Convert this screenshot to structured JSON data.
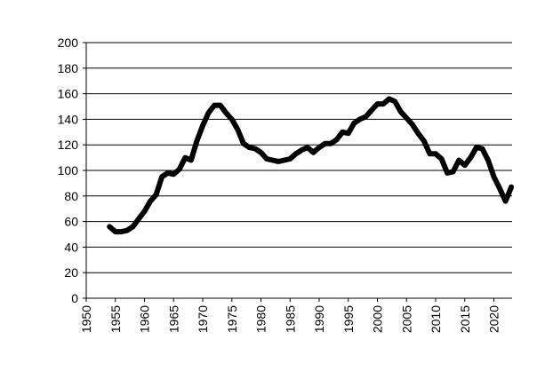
{
  "chart_data": {
    "type": "line",
    "title": "",
    "xlabel": "",
    "ylabel": "",
    "xlim": [
      1950,
      2023
    ],
    "ylim": [
      0,
      200
    ],
    "y_ticks": [
      "0",
      "20",
      "40",
      "60",
      "80",
      "100",
      "120",
      "140",
      "160",
      "180",
      "200"
    ],
    "x_ticks": [
      "1950",
      "1955",
      "1960",
      "1965",
      "1970",
      "1975",
      "1980",
      "1985",
      "1990",
      "1995",
      "2000",
      "2005",
      "2010",
      "2015",
      "2020"
    ],
    "grid": "horizontal",
    "legend": "none",
    "colors": {
      "line": "#000000",
      "grid": "#000000",
      "background": "#ffffff"
    },
    "series": [
      {
        "x": [
          1954,
          1955,
          1956,
          1957,
          1958,
          1959,
          1960,
          1961,
          1962,
          1963,
          1964,
          1965,
          1966,
          1967,
          1968,
          1969,
          1970,
          1971,
          1972,
          1973,
          1974,
          1975,
          1976,
          1977,
          1978,
          1979,
          1980,
          1981,
          1982,
          1983,
          1984,
          1985,
          1986,
          1987,
          1988,
          1989,
          1990,
          1991,
          1992,
          1993,
          1994,
          1995,
          1996,
          1997,
          1998,
          1999,
          2000,
          2001,
          2002,
          2003,
          2004,
          2005,
          2006,
          2007,
          2008,
          2009,
          2010,
          2011,
          2012,
          2013,
          2014,
          2015,
          2016,
          2017,
          2018,
          2019,
          2020,
          2021,
          2022,
          2023
        ],
        "values": [
          56,
          52,
          52,
          53,
          56,
          62,
          68,
          76,
          81,
          95,
          98,
          97,
          101,
          110,
          108,
          123,
          135,
          145,
          151,
          151,
          145,
          140,
          132,
          121,
          118,
          117,
          114,
          109,
          108,
          107,
          108,
          109,
          113,
          116,
          118,
          114,
          118,
          121,
          121,
          124,
          130,
          129,
          137,
          140,
          142,
          147,
          152,
          152,
          156,
          154,
          146,
          141,
          136,
          129,
          123,
          113,
          113,
          109,
          98,
          99,
          108,
          104,
          110,
          118,
          117,
          108,
          95,
          86,
          76,
          87
        ]
      }
    ]
  }
}
